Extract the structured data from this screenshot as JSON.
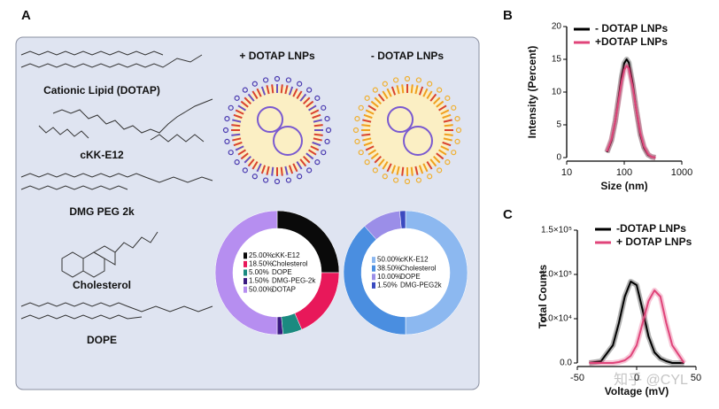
{
  "panel_labels": [
    "A",
    "B",
    "C"
  ],
  "lipids": [
    "Cationic Lipid (DOTAP)",
    "cKK-E12",
    "DMG PEG 2k",
    "Cholesterol",
    "DOPE"
  ],
  "lnp_titles": [
    "+ DOTAP LNPs",
    "- DOTAP LNPs"
  ],
  "watermark": "知乎 @CYL",
  "chart_data": [
    {
      "type": "donut",
      "categories": [
        "cKK-E12",
        "Cholesterol",
        "DOPE",
        "DMG-PEG-2k",
        "DOTAP"
      ],
      "values": [
        25,
        18.5,
        5,
        1.5,
        50
      ],
      "value_labels": [
        "25.00%",
        "18.50%",
        "5.00%",
        "1.50%",
        "50.00%"
      ],
      "colors": [
        "#0a0a0a",
        "#e8185a",
        "#1b8a80",
        "#3a1a80",
        "#b68ef0"
      ]
    },
    {
      "type": "donut",
      "categories": [
        "cKK-E12",
        "Cholesterol",
        "DOPE",
        "DMG-PEG2k"
      ],
      "values": [
        50,
        38.5,
        10,
        1.5
      ],
      "value_labels": [
        "50.00%",
        "38.50%",
        "10.00%",
        "1.50%"
      ],
      "colors": [
        "#8cb8f0",
        "#4a8ee0",
        "#9b8ee8",
        "#3a4ac0"
      ]
    },
    {
      "type": "line",
      "xlabel": "Size (nm)",
      "ylabel": "Intensity (Percent)",
      "log_x": true,
      "x": [
        50,
        60,
        70,
        80,
        90,
        100,
        110,
        120,
        140,
        160,
        190,
        220,
        260,
        300,
        350
      ],
      "series": [
        {
          "name": "- DOTAP LNPs",
          "color": "#000000",
          "values": [
            0.8,
            2.6,
            5.6,
            9.2,
            12.4,
            14.4,
            15,
            14.5,
            11.3,
            7.6,
            3.5,
            1.5,
            0.4,
            0.1,
            0
          ]
        },
        {
          "name": "+DOTAP LNPs",
          "color": "#e0447a",
          "values": [
            0.9,
            2.8,
            5.6,
            8.8,
            11.6,
            13.4,
            14,
            13.6,
            10.8,
            7.6,
            3.8,
            1.7,
            0.5,
            0.1,
            0
          ]
        }
      ],
      "xlim": [
        10,
        1000
      ],
      "xticks": [
        10,
        100,
        1000
      ],
      "ylim": [
        0,
        20
      ],
      "yticks": [
        0,
        5,
        10,
        15,
        20
      ]
    },
    {
      "type": "line",
      "xlabel": "Voltage (mV)",
      "ylabel": "Total  Counts",
      "log_x": false,
      "x": [
        -40,
        -30,
        -20,
        -15,
        -10,
        -5,
        0,
        5,
        10,
        15,
        20,
        25,
        30,
        40
      ],
      "series": [
        {
          "name": "-DOTAP LNPs",
          "color": "#000000",
          "values": [
            0,
            2000,
            20000,
            45000,
            75000,
            92000,
            88000,
            60000,
            30000,
            12000,
            5000,
            2000,
            0,
            0
          ]
        },
        {
          "name": "+ DOTAP LNPs",
          "color": "#e0447a",
          "values": [
            0,
            0,
            0,
            1000,
            3000,
            8000,
            20000,
            45000,
            70000,
            82000,
            75000,
            45000,
            20000,
            0
          ]
        }
      ],
      "xlim": [
        -50,
        50
      ],
      "xticks": [
        -50,
        0,
        50
      ],
      "ylim": [
        0,
        150000
      ],
      "yticks": [
        {
          "value": 0,
          "label": "0.0"
        },
        {
          "value": 50000,
          "label": "5.0×10⁴"
        },
        {
          "value": 100000,
          "label": "1.0×10⁵"
        },
        {
          "value": 150000,
          "label": "1.5×10⁵"
        }
      ]
    }
  ]
}
